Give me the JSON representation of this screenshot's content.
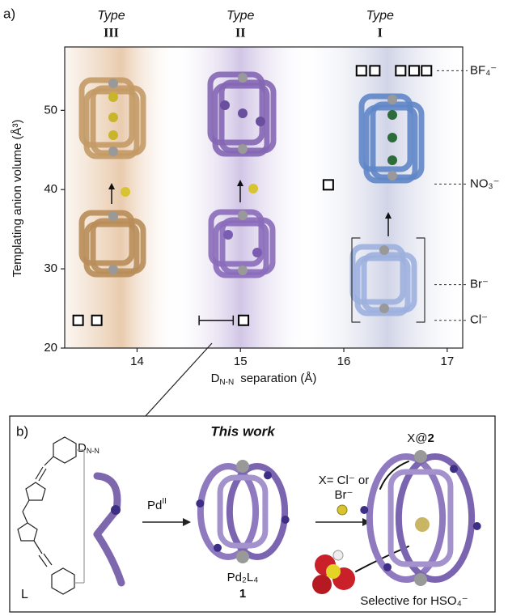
{
  "panel_label_a": "a)",
  "panel_label_b": "b)",
  "chart_data": {
    "type": "scatter",
    "xlabel": {
      "symbol": "D",
      "subscript": "N-N",
      "text": "separation (Å)"
    },
    "ylabel": "Templating anion volume (Å³)",
    "xlim": [
      13.3,
      17.15
    ],
    "ylim": [
      20,
      58
    ],
    "xticks": [
      14,
      15,
      16,
      17
    ],
    "yticks": [
      20,
      30,
      40,
      50
    ],
    "marker": "square",
    "color": "#000000",
    "x": [
      13.43,
      13.61,
      15.03,
      15.85,
      16.17,
      16.3,
      16.55,
      16.68,
      16.8
    ],
    "values": [
      23.5,
      23.5,
      23.5,
      40.6,
      55,
      55,
      55,
      55,
      55
    ],
    "error_bar": {
      "x_from": 14.6,
      "x_to": 14.93,
      "y": 23.5
    },
    "types": [
      {
        "label": "Type",
        "numeral": "III",
        "x": 13.75
      },
      {
        "label": "Type",
        "numeral": "II",
        "x": 15.0
      },
      {
        "label": "Type",
        "numeral": "I",
        "x": 16.35
      }
    ],
    "anions": [
      {
        "label": "BF₄⁻",
        "value": 55
      },
      {
        "label": "NO₃⁻",
        "value": 40.7
      },
      {
        "label": "Br⁻",
        "value": 28
      },
      {
        "label": "Cl⁻",
        "value": 23.5
      }
    ]
  },
  "scheme": {
    "ligand_label": "L",
    "distance": {
      "symbol": "D",
      "subscript": "N-N"
    },
    "title": "This work",
    "reagent": {
      "text": "Pd",
      "superscript": "II"
    },
    "intermediate": {
      "formula": "Pd₂L₄",
      "number": "1"
    },
    "conditions": [
      "X= Cl⁻ or",
      "Br⁻"
    ],
    "product": {
      "prefix": "X@",
      "number": "2"
    },
    "selectivity": "Selective for HSO₄⁻"
  }
}
